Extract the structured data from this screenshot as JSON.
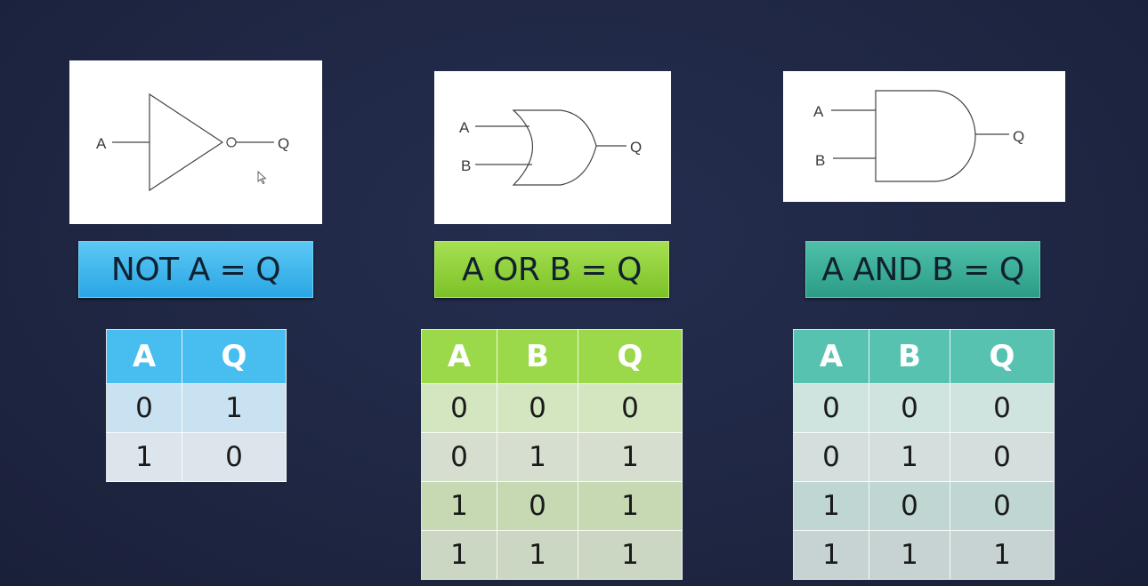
{
  "not_gate": {
    "input_label": "A",
    "output_label": "Q",
    "expression": "NOT A = Q",
    "headers": [
      "A",
      "Q"
    ],
    "rows": [
      [
        "0",
        "1"
      ],
      [
        "1",
        "0"
      ]
    ]
  },
  "or_gate": {
    "input_a_label": "A",
    "input_b_label": "B",
    "output_label": "Q",
    "expression": "A OR B = Q",
    "headers": [
      "A",
      "B",
      "Q"
    ],
    "rows": [
      [
        "0",
        "0",
        "0"
      ],
      [
        "0",
        "1",
        "1"
      ],
      [
        "1",
        "0",
        "1"
      ],
      [
        "1",
        "1",
        "1"
      ]
    ]
  },
  "and_gate": {
    "input_a_label": "A",
    "input_b_label": "B",
    "output_label": "Q",
    "expression": "A AND B = Q",
    "headers": [
      "A",
      "B",
      "Q"
    ],
    "rows": [
      [
        "0",
        "0",
        "0"
      ],
      [
        "0",
        "1",
        "0"
      ],
      [
        "1",
        "0",
        "0"
      ],
      [
        "1",
        "1",
        "1"
      ]
    ]
  },
  "colors": {
    "not_accent": "#2aa6e4",
    "or_accent": "#7cc227",
    "and_accent": "#2c9c86",
    "background": "#1f2744"
  }
}
